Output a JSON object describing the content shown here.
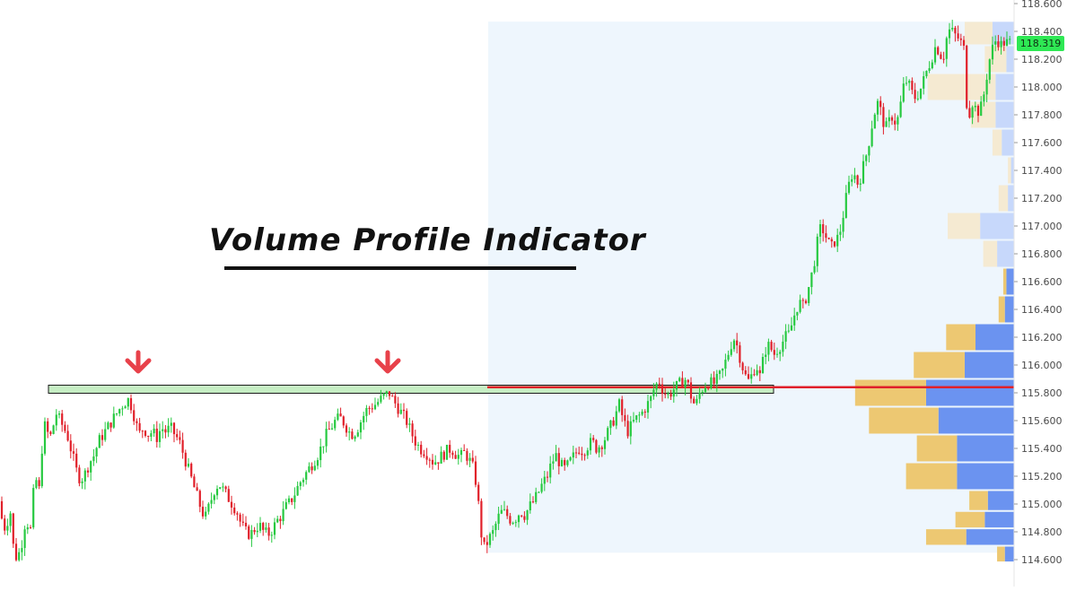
{
  "chart_data": {
    "type": "candlestick",
    "title": "Volume Profile Indicator",
    "y_axis": {
      "ylim": [
        114.55,
        118.62
      ],
      "ticks": [
        "118.600",
        "118.400",
        "118.200",
        "118.000",
        "117.800",
        "117.600",
        "117.400",
        "117.200",
        "117.000",
        "116.800",
        "116.600",
        "116.400",
        "116.200",
        "116.000",
        "115.800",
        "115.600",
        "115.400",
        "115.200",
        "115.000",
        "114.800",
        "114.600"
      ],
      "last_price_label": "118.319",
      "last_price": 118.319
    },
    "resistance_level": 115.81,
    "point_of_control": 115.84,
    "price_path": [
      [
        0,
        115.1
      ],
      [
        5,
        114.9
      ],
      [
        10,
        114.8
      ],
      [
        14,
        115.0
      ],
      [
        18,
        114.7
      ],
      [
        22,
        114.6
      ],
      [
        27,
        114.7
      ],
      [
        32,
        114.9
      ],
      [
        37,
        114.8
      ],
      [
        42,
        115.2
      ],
      [
        47,
        115.1
      ],
      [
        50,
        115.4
      ],
      [
        54,
        115.6
      ],
      [
        58,
        115.45
      ],
      [
        62,
        115.55
      ],
      [
        66,
        115.65
      ],
      [
        70,
        115.6
      ],
      [
        74,
        115.55
      ],
      [
        78,
        115.5
      ],
      [
        82,
        115.4
      ],
      [
        86,
        115.3
      ],
      [
        90,
        115.2
      ],
      [
        94,
        115.18
      ],
      [
        98,
        115.22
      ],
      [
        103,
        115.3
      ],
      [
        108,
        115.35
      ],
      [
        113,
        115.45
      ],
      [
        118,
        115.5
      ],
      [
        123,
        115.55
      ],
      [
        128,
        115.6
      ],
      [
        133,
        115.65
      ],
      [
        138,
        115.7
      ],
      [
        142,
        115.73
      ],
      [
        146,
        115.75
      ],
      [
        150,
        115.7
      ],
      [
        154,
        115.6
      ],
      [
        158,
        115.5
      ],
      [
        163,
        115.55
      ],
      [
        168,
        115.5
      ],
      [
        173,
        115.52
      ],
      [
        178,
        115.48
      ],
      [
        183,
        115.55
      ],
      [
        188,
        115.52
      ],
      [
        193,
        115.55
      ],
      [
        198,
        115.5
      ],
      [
        203,
        115.45
      ],
      [
        208,
        115.35
      ],
      [
        213,
        115.25
      ],
      [
        218,
        115.15
      ],
      [
        223,
        115.05
      ],
      [
        228,
        114.95
      ],
      [
        232,
        114.9
      ],
      [
        237,
        115.0
      ],
      [
        242,
        115.1
      ],
      [
        247,
        115.15
      ],
      [
        252,
        115.1
      ],
      [
        257,
        115.05
      ],
      [
        262,
        115.0
      ],
      [
        267,
        114.95
      ],
      [
        272,
        114.85
      ],
      [
        277,
        114.8
      ],
      [
        282,
        114.78
      ],
      [
        287,
        114.82
      ],
      [
        292,
        114.85
      ],
      [
        297,
        114.8
      ],
      [
        302,
        114.78
      ],
      [
        307,
        114.82
      ],
      [
        312,
        114.88
      ],
      [
        317,
        114.92
      ],
      [
        322,
        114.98
      ],
      [
        327,
        115.02
      ],
      [
        332,
        115.08
      ],
      [
        337,
        115.15
      ],
      [
        342,
        115.2
      ],
      [
        347,
        115.25
      ],
      [
        352,
        115.3
      ],
      [
        357,
        115.35
      ],
      [
        362,
        115.42
      ],
      [
        367,
        115.5
      ],
      [
        372,
        115.55
      ],
      [
        377,
        115.6
      ],
      [
        382,
        115.62
      ],
      [
        387,
        115.58
      ],
      [
        392,
        115.52
      ],
      [
        397,
        115.5
      ],
      [
        402,
        115.55
      ],
      [
        407,
        115.62
      ],
      [
        412,
        115.68
      ],
      [
        417,
        115.7
      ],
      [
        422,
        115.72
      ],
      [
        427,
        115.75
      ],
      [
        432,
        115.78
      ],
      [
        437,
        115.8
      ],
      [
        441,
        115.75
      ],
      [
        446,
        115.7
      ],
      [
        451,
        115.65
      ],
      [
        456,
        115.6
      ],
      [
        461,
        115.52
      ],
      [
        466,
        115.45
      ],
      [
        471,
        115.4
      ],
      [
        476,
        115.38
      ],
      [
        481,
        115.35
      ],
      [
        486,
        115.3
      ],
      [
        491,
        115.32
      ],
      [
        496,
        115.35
      ],
      [
        501,
        115.38
      ],
      [
        506,
        115.4
      ],
      [
        511,
        115.36
      ],
      [
        516,
        115.34
      ],
      [
        521,
        115.37
      ],
      [
        526,
        115.32
      ],
      [
        531,
        115.25
      ],
      [
        535,
        115.1
      ],
      [
        539,
        114.8
      ],
      [
        543,
        114.68
      ],
      [
        548,
        114.75
      ],
      [
        553,
        114.8
      ],
      [
        558,
        114.9
      ],
      [
        563,
        114.95
      ],
      [
        568,
        114.92
      ],
      [
        573,
        114.88
      ],
      [
        578,
        114.9
      ],
      [
        583,
        114.95
      ],
      [
        588,
        114.92
      ],
      [
        593,
        114.98
      ],
      [
        598,
        115.02
      ],
      [
        603,
        115.08
      ],
      [
        608,
        115.15
      ],
      [
        613,
        115.2
      ],
      [
        618,
        115.3
      ],
      [
        623,
        115.35
      ],
      [
        628,
        115.28
      ],
      [
        633,
        115.25
      ],
      [
        638,
        115.3
      ],
      [
        643,
        115.35
      ],
      [
        648,
        115.4
      ],
      [
        653,
        115.38
      ],
      [
        658,
        115.42
      ],
      [
        663,
        115.45
      ],
      [
        668,
        115.4
      ],
      [
        673,
        115.43
      ],
      [
        678,
        115.48
      ],
      [
        683,
        115.55
      ],
      [
        688,
        115.62
      ],
      [
        693,
        115.72
      ],
      [
        698,
        115.6
      ],
      [
        703,
        115.52
      ],
      [
        708,
        115.58
      ],
      [
        713,
        115.62
      ],
      [
        718,
        115.65
      ],
      [
        723,
        115.7
      ],
      [
        728,
        115.75
      ],
      [
        733,
        115.85
      ],
      [
        738,
        115.88
      ],
      [
        743,
        115.8
      ],
      [
        748,
        115.78
      ],
      [
        753,
        115.82
      ],
      [
        758,
        115.85
      ],
      [
        763,
        115.88
      ],
      [
        768,
        115.9
      ],
      [
        773,
        115.78
      ],
      [
        778,
        115.7
      ],
      [
        783,
        115.8
      ],
      [
        788,
        115.85
      ],
      [
        793,
        115.88
      ],
      [
        798,
        115.86
      ],
      [
        803,
        115.9
      ],
      [
        808,
        115.95
      ],
      [
        813,
        116.05
      ],
      [
        818,
        116.15
      ],
      [
        822,
        116.2
      ],
      [
        826,
        116.1
      ],
      [
        830,
        116.0
      ],
      [
        834,
        115.92
      ],
      [
        838,
        115.88
      ],
      [
        842,
        115.95
      ],
      [
        846,
        116.0
      ],
      [
        850,
        115.92
      ],
      [
        854,
        116.05
      ],
      [
        858,
        116.15
      ],
      [
        862,
        116.12
      ],
      [
        866,
        116.08
      ],
      [
        870,
        116.12
      ],
      [
        874,
        116.15
      ],
      [
        878,
        116.2
      ],
      [
        882,
        116.22
      ],
      [
        886,
        116.3
      ],
      [
        890,
        116.4
      ],
      [
        894,
        116.45
      ],
      [
        898,
        116.42
      ],
      [
        902,
        116.5
      ],
      [
        906,
        116.6
      ],
      [
        910,
        116.72
      ],
      [
        914,
        116.88
      ],
      [
        918,
        117.0
      ],
      [
        922,
        116.95
      ],
      [
        926,
        116.88
      ],
      [
        930,
        116.85
      ],
      [
        934,
        116.9
      ],
      [
        938,
        116.92
      ],
      [
        942,
        117.05
      ],
      [
        946,
        117.2
      ],
      [
        950,
        117.32
      ],
      [
        954,
        117.4
      ],
      [
        958,
        117.3
      ],
      [
        962,
        117.35
      ],
      [
        966,
        117.45
      ],
      [
        970,
        117.55
      ],
      [
        974,
        117.7
      ],
      [
        978,
        117.82
      ],
      [
        982,
        117.9
      ],
      [
        986,
        117.78
      ],
      [
        990,
        117.7
      ],
      [
        994,
        117.75
      ],
      [
        998,
        117.8
      ],
      [
        1002,
        117.72
      ],
      [
        1006,
        117.85
      ],
      [
        1010,
        118.0
      ],
      [
        1014,
        118.05
      ],
      [
        1018,
        117.98
      ],
      [
        1022,
        117.92
      ],
      [
        1026,
        117.95
      ],
      [
        1030,
        118.0
      ],
      [
        1034,
        118.08
      ],
      [
        1038,
        118.15
      ],
      [
        1042,
        118.22
      ],
      [
        1046,
        118.3
      ],
      [
        1050,
        118.25
      ],
      [
        1054,
        118.2
      ],
      [
        1058,
        118.35
      ],
      [
        1062,
        118.42
      ],
      [
        1066,
        118.38
      ],
      [
        1070,
        118.36
      ],
      [
        1074,
        118.32
      ],
      [
        1077,
        118.3
      ],
      [
        1080,
        117.9
      ],
      [
        1083,
        117.8
      ],
      [
        1086,
        117.9
      ],
      [
        1090,
        117.85
      ],
      [
        1094,
        117.82
      ],
      [
        1098,
        117.88
      ],
      [
        1102,
        118.05
      ],
      [
        1106,
        118.2
      ],
      [
        1110,
        118.3
      ],
      [
        1114,
        118.35
      ],
      [
        1118,
        118.3
      ],
      [
        1122,
        118.32
      ],
      [
        1126,
        118.319
      ]
    ],
    "volume_profile": [
      {
        "price": 118.4,
        "up": 0.14,
        "down": 0.18
      },
      {
        "price": 118.2,
        "up": 0.05,
        "down": 0.14
      },
      {
        "price": 118.0,
        "up": 0.12,
        "down": 0.44
      },
      {
        "price": 117.8,
        "up": 0.12,
        "down": 0.16
      },
      {
        "price": 117.6,
        "up": 0.08,
        "down": 0.06
      },
      {
        "price": 117.4,
        "up": 0.02,
        "down": 0.02
      },
      {
        "price": 117.2,
        "up": 0.04,
        "down": 0.06
      },
      {
        "price": 117.0,
        "up": 0.22,
        "down": 0.21
      },
      {
        "price": 116.8,
        "up": 0.11,
        "down": 0.09
      },
      {
        "price": 116.6,
        "up": 0.05,
        "down": 0.02
      },
      {
        "price": 116.4,
        "up": 0.06,
        "down": 0.04
      },
      {
        "price": 116.2,
        "up": 0.25,
        "down": 0.19
      },
      {
        "price": 116.0,
        "up": 0.32,
        "down": 0.33
      },
      {
        "price": 115.8,
        "up": 0.57,
        "down": 0.46
      },
      {
        "price": 115.6,
        "up": 0.49,
        "down": 0.45
      },
      {
        "price": 115.4,
        "up": 0.37,
        "down": 0.26
      },
      {
        "price": 115.2,
        "up": 0.37,
        "down": 0.33
      },
      {
        "price": 115.0,
        "up": 0.17,
        "down": 0.12
      },
      {
        "price": 114.9,
        "up": 0.19,
        "down": 0.19
      },
      {
        "price": 114.75,
        "up": 0.31,
        "down": 0.26
      },
      {
        "price": 114.65,
        "up": 0.06,
        "down": 0.05
      }
    ],
    "profile_range": [
      114.65,
      118.47
    ],
    "colors": {
      "up_candle": "#26c940",
      "down_candle": "#e0202a",
      "profile_up": "#6b93f0",
      "profile_down": "#edc872",
      "profile_up_faded": "#c7d8fb",
      "profile_down_faded": "#f5ead2",
      "profile_background": "#eef6fd",
      "resistance_fill": "#c6eec4",
      "poc_line": "#e0202a",
      "arrows": "#e8414a",
      "last_price": "#2ee854"
    },
    "grid": false,
    "legend": "none"
  }
}
